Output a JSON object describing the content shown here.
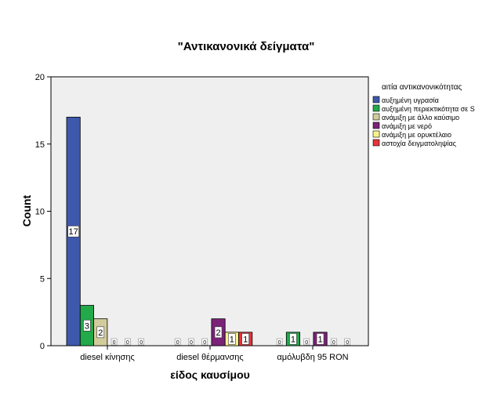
{
  "chart_data": {
    "type": "bar",
    "title": "\"Αντικανονικά δείγματα\"",
    "xlabel": "είδος καυσίμου",
    "ylabel": "Count",
    "categories": [
      "diesel κίνησης",
      "diesel θέρμανσης",
      "αμόλυβδη 95 RON"
    ],
    "ylim": [
      0,
      20
    ],
    "yticks": [
      0,
      5,
      10,
      15,
      20
    ],
    "legend_title": "αιτία αντικανονικότητας",
    "legend_position": "right",
    "grid": false,
    "background": "#efefef",
    "series": [
      {
        "name": "αυξημένη υγρασία",
        "color": "#3e58ac",
        "values": [
          17,
          0,
          0
        ]
      },
      {
        "name": "αυξημένη περιεκτικότητα σε S",
        "color": "#21a94a",
        "values": [
          3,
          0,
          1
        ]
      },
      {
        "name": "ανάμιξη με άλλο καύσιμο",
        "color": "#d2cc9c",
        "values": [
          2,
          0,
          0
        ]
      },
      {
        "name": "ανάμιξη με νερό",
        "color": "#7a2378",
        "values": [
          0,
          2,
          1
        ]
      },
      {
        "name": "ανάμιξη με ορυκτέλαιο",
        "color": "#f9f28c",
        "values": [
          0,
          1,
          0
        ]
      },
      {
        "name": "αστοχία δειγματοληψίας",
        "color": "#e8343b",
        "values": [
          0,
          1,
          0
        ]
      }
    ]
  }
}
